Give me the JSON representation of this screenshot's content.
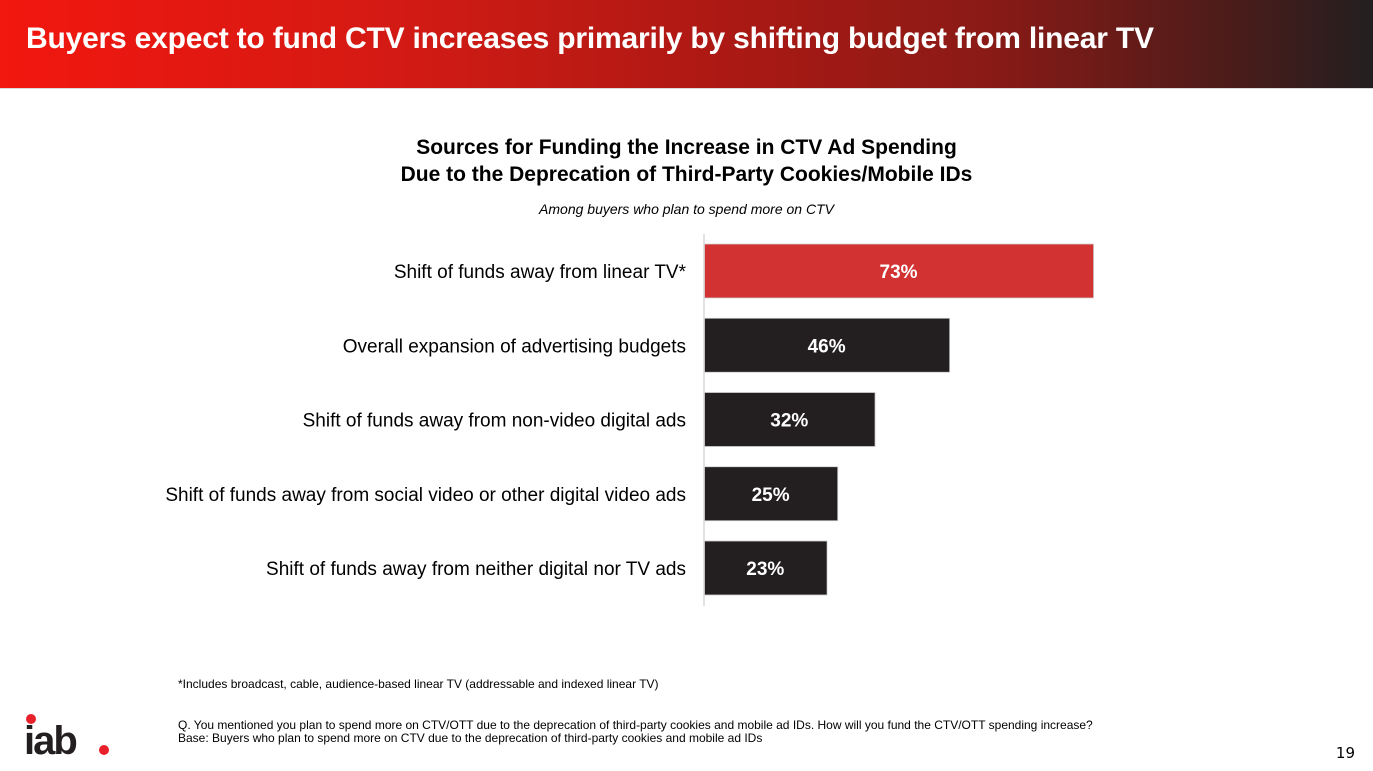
{
  "header": {
    "title": "Buyers expect to fund CTV increases primarily by shifting budget from linear TV"
  },
  "chart_data": {
    "type": "bar",
    "orientation": "horizontal",
    "title": "Sources for Funding the Increase in CTV Ad Spending Due to the Deprecation of Third-Party Cookies/Mobile IDs",
    "title_lines": [
      "Sources for Funding the Increase in CTV Ad Spending",
      "Due to the Deprecation of Third-Party Cookies/Mobile IDs"
    ],
    "subtitle": "Among buyers who plan to spend more on CTV",
    "categories": [
      "Shift of funds away from linear TV*",
      "Overall expansion of advertising budgets",
      "Shift of funds away from non-video digital ads",
      "Shift of funds away from social video or other digital video ads",
      "Shift of funds away from neither digital nor TV ads"
    ],
    "values": [
      73,
      46,
      32,
      25,
      23
    ],
    "value_labels": [
      "73%",
      "46%",
      "32%",
      "25%",
      "23%"
    ],
    "unit": "%",
    "xlim": [
      0,
      100
    ],
    "grid": false,
    "legend": "none",
    "highlight_index": 0,
    "colors": {
      "highlight": "#d33232",
      "default": "#231f20",
      "label_text": "#ffffff",
      "axis": "#d9d9d9"
    },
    "xlabel": "",
    "ylabel": ""
  },
  "footer": {
    "footnote": "*Includes broadcast, cable, audience-based linear TV (addressable and indexed linear TV)",
    "question": "Q. You mentioned you plan to spend more on CTV/OTT due to the deprecation of third-party cookies and mobile ad IDs. How will you fund the CTV/OTT spending increase?",
    "base": "Base: Buyers who plan to spend more on CTV due to the deprecation of third-party cookies and mobile ad IDs",
    "page_number": "19",
    "logo_text": "iab",
    "logo_accent": "#e8202a"
  }
}
